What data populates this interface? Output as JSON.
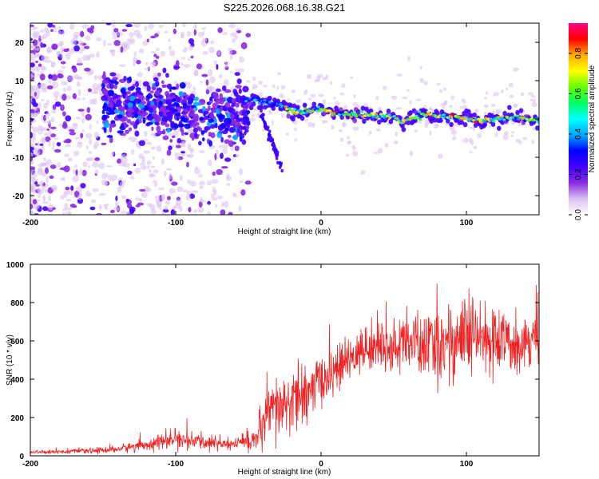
{
  "title": "S225.2026.068.16.38.G21",
  "chart_data": [
    {
      "type": "heatmap",
      "name": "spectrogram",
      "xlabel": "Height of straight line (km)",
      "ylabel": "Frequency (Hz)",
      "xlim": [
        -200,
        150
      ],
      "ylim": [
        -25,
        25
      ],
      "x_ticks": [
        -200,
        -100,
        0,
        100
      ],
      "x_tick_labels": [
        "-200",
        "-100",
        "0",
        "100"
      ],
      "y_ticks": [
        -20,
        -10,
        0,
        10,
        20
      ],
      "y_tick_labels": [
        "-20",
        "-10",
        "0",
        "10",
        "20"
      ],
      "colorbar": {
        "label": "Normalized spectral amplitude",
        "range": [
          0,
          0.95
        ],
        "ticks": [
          0.0,
          0.2,
          0.4,
          0.6,
          0.8
        ],
        "tick_labels": [
          "0.0",
          "0.2",
          "0.4",
          "0.6",
          "0.8"
        ],
        "colormap": [
          "#ffffff",
          "#d8c0f0",
          "#8a2be2",
          "#4400ff",
          "#0000ff",
          "#00aaff",
          "#00ffff",
          "#00ff66",
          "#66ff00",
          "#ffff00",
          "#ffaa00",
          "#ff0000",
          "#ff0088"
        ]
      },
      "ridge": {
        "x": [
          -60,
          -50,
          -40,
          -30,
          -20,
          -10,
          0,
          10,
          20,
          30,
          40,
          50,
          55,
          60,
          70,
          80,
          90,
          100,
          110,
          120,
          130,
          140,
          150
        ],
        "freq": [
          6,
          5,
          4.5,
          4,
          2,
          2,
          2.5,
          1.5,
          1,
          1,
          1,
          0.5,
          -1,
          0,
          1,
          1,
          0.5,
          0,
          -0.5,
          0,
          0.5,
          0,
          -0.5
        ]
      },
      "noisy_band": {
        "x": [
          -200,
          -180,
          -160,
          -140,
          -120,
          -100,
          -80,
          -70,
          -60
        ],
        "center_freq": [
          5,
          5,
          5,
          4,
          3,
          2,
          1,
          0,
          0
        ]
      },
      "branch": {
        "x": [
          -42,
          -38,
          -34,
          -30,
          -27,
          -25
        ],
        "freq": [
          3,
          -2,
          -6,
          -10,
          -13,
          -16
        ]
      }
    },
    {
      "type": "line",
      "name": "snr",
      "xlabel": "Height of straight line (km)",
      "ylabel": "SNR (10 * v/v)",
      "xlim": [
        -200,
        150
      ],
      "ylim": [
        0,
        1000
      ],
      "x_ticks": [
        -200,
        -100,
        0,
        100
      ],
      "x_tick_labels": [
        "-200",
        "-100",
        "0",
        "100"
      ],
      "y_ticks": [
        0,
        200,
        400,
        600,
        800,
        1000
      ],
      "y_tick_labels": [
        "0",
        "200",
        "400",
        "600",
        "800",
        "1000"
      ],
      "color": "#ee2222",
      "envelope": {
        "x": [
          -200,
          -180,
          -160,
          -140,
          -120,
          -100,
          -80,
          -60,
          -45,
          -40,
          -35,
          -30,
          -20,
          -10,
          0,
          10,
          20,
          30,
          40,
          50,
          60,
          70,
          80,
          90,
          100,
          110,
          120,
          130,
          140,
          150
        ],
        "mean": [
          20,
          22,
          25,
          35,
          60,
          85,
          70,
          60,
          90,
          140,
          220,
          240,
          280,
          320,
          390,
          450,
          500,
          560,
          580,
          560,
          600,
          560,
          580,
          600,
          620,
          610,
          600,
          580,
          610,
          620
        ],
        "spread": [
          8,
          10,
          12,
          18,
          30,
          40,
          35,
          30,
          60,
          120,
          160,
          160,
          150,
          140,
          120,
          110,
          100,
          110,
          120,
          120,
          140,
          160,
          180,
          200,
          200,
          180,
          150,
          140,
          130,
          120
        ]
      }
    }
  ]
}
